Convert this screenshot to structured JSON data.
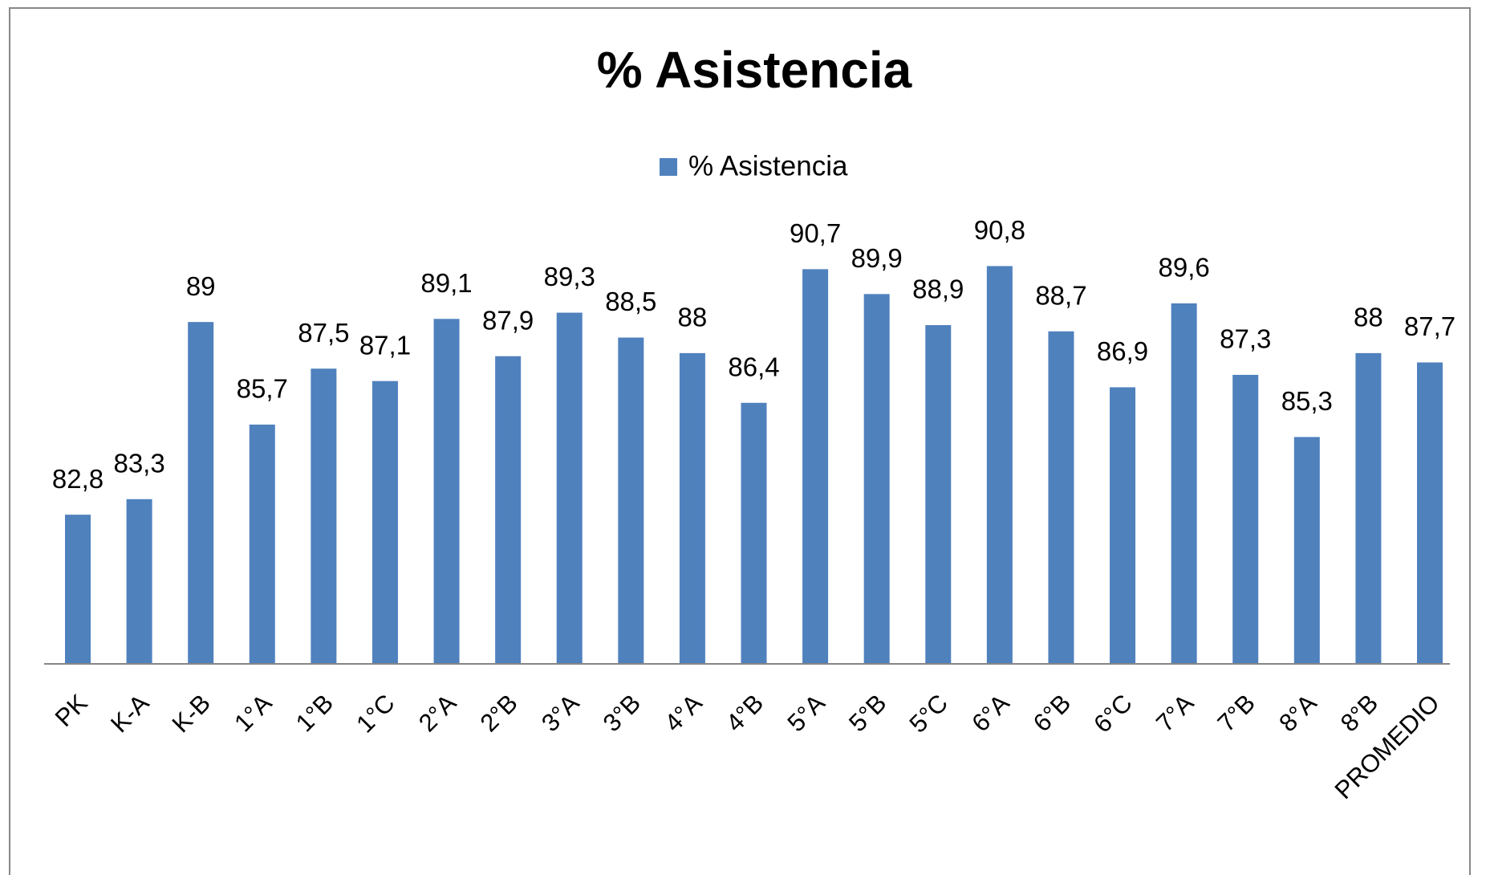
{
  "chart_data": {
    "type": "bar",
    "title": "% Asistencia",
    "categories": [
      "PK",
      "K-A",
      "K-B",
      "1°A",
      "1°B",
      "1°C",
      "2°A",
      "2°B",
      "3°A",
      "3°B",
      "4°A",
      "4°B",
      "5°A",
      "5°B",
      "5°C",
      "6°A",
      "6°B",
      "6°C",
      "7°A",
      "7°B",
      "8°A",
      "8°B",
      "PROMEDIO"
    ],
    "series": [
      {
        "name": "% Asistencia",
        "color": "#4f81bd",
        "values": [
          82.8,
          83.3,
          89,
          85.7,
          87.5,
          87.1,
          89.1,
          87.9,
          89.3,
          88.5,
          88,
          86.4,
          90.7,
          89.9,
          88.9,
          90.8,
          88.7,
          86.9,
          89.6,
          87.3,
          85.3,
          88,
          87.7
        ],
        "value_labels": [
          "82,8",
          "83,3",
          "89",
          "85,7",
          "87,5",
          "87,1",
          "89,1",
          "87,9",
          "89,3",
          "88,5",
          "88",
          "86,4",
          "90,7",
          "89,9",
          "88,9",
          "90,8",
          "88,7",
          "86,9",
          "89,6",
          "87,3",
          "85,3",
          "88",
          "87,7"
        ]
      }
    ],
    "ylim": [
      78,
      92
    ],
    "legend": "top"
  }
}
